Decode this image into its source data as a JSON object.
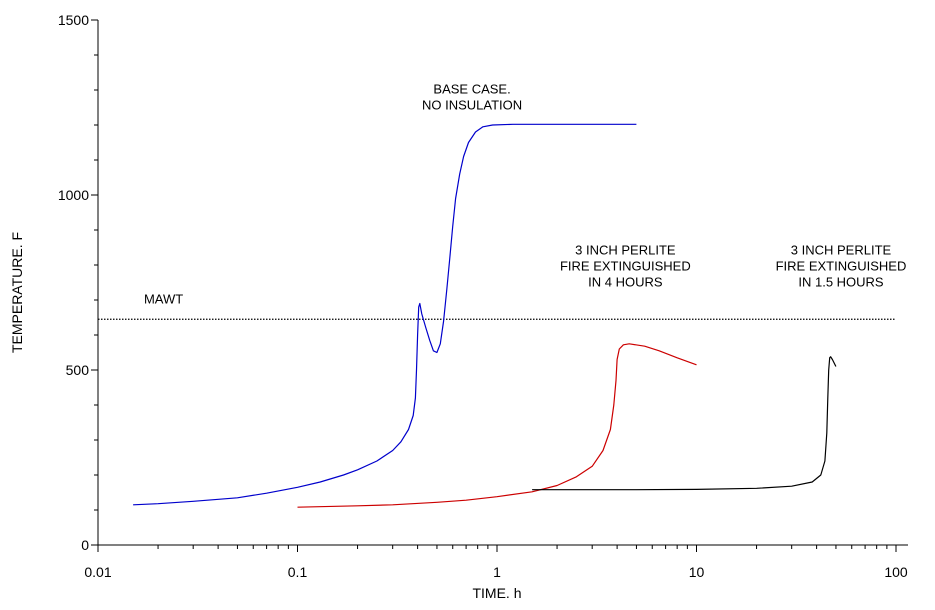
{
  "chart_data": {
    "type": "line",
    "title": "",
    "xlabel": "TIME. h",
    "ylabel": "TEMPERATURE. F",
    "x_scale": "log",
    "xlim": [
      0.01,
      100
    ],
    "ylim": [
      0,
      1500
    ],
    "x_ticks": [
      {
        "value": 0.01,
        "label": "0.01"
      },
      {
        "value": 0.1,
        "label": "0.1"
      },
      {
        "value": 1,
        "label": "1"
      },
      {
        "value": 10,
        "label": "10"
      },
      {
        "value": 100,
        "label": "100"
      }
    ],
    "y_ticks": [
      {
        "value": 0,
        "label": "0"
      },
      {
        "value": 500,
        "label": "500"
      },
      {
        "value": 1000,
        "label": "1000"
      },
      {
        "value": 1500,
        "label": "1500"
      }
    ],
    "grid": false,
    "legend": "none",
    "reference_lines": [
      {
        "label": "MAWT",
        "y": 645,
        "style": "dotted",
        "color": "#000000"
      }
    ],
    "series": [
      {
        "color": "#0000cc",
        "points": [
          [
            0.015,
            115
          ],
          [
            0.02,
            118
          ],
          [
            0.03,
            125
          ],
          [
            0.05,
            135
          ],
          [
            0.07,
            148
          ],
          [
            0.1,
            165
          ],
          [
            0.13,
            180
          ],
          [
            0.17,
            200
          ],
          [
            0.2,
            215
          ],
          [
            0.25,
            240
          ],
          [
            0.3,
            270
          ],
          [
            0.33,
            295
          ],
          [
            0.36,
            330
          ],
          [
            0.38,
            370
          ],
          [
            0.39,
            420
          ],
          [
            0.395,
            500
          ],
          [
            0.4,
            600
          ],
          [
            0.405,
            680
          ],
          [
            0.41,
            690
          ],
          [
            0.42,
            660
          ],
          [
            0.44,
            620
          ],
          [
            0.46,
            585
          ],
          [
            0.48,
            555
          ],
          [
            0.5,
            550
          ],
          [
            0.52,
            575
          ],
          [
            0.54,
            640
          ],
          [
            0.56,
            730
          ],
          [
            0.58,
            820
          ],
          [
            0.6,
            910
          ],
          [
            0.62,
            990
          ],
          [
            0.65,
            1060
          ],
          [
            0.68,
            1110
          ],
          [
            0.72,
            1150
          ],
          [
            0.78,
            1180
          ],
          [
            0.85,
            1195
          ],
          [
            0.95,
            1200
          ],
          [
            1.2,
            1202
          ],
          [
            2,
            1202
          ],
          [
            3,
            1202
          ],
          [
            5,
            1202
          ]
        ]
      },
      {
        "color": "#cc0000",
        "points": [
          [
            0.1,
            108
          ],
          [
            0.2,
            112
          ],
          [
            0.3,
            115
          ],
          [
            0.5,
            122
          ],
          [
            0.7,
            128
          ],
          [
            1.0,
            138
          ],
          [
            1.5,
            152
          ],
          [
            2,
            170
          ],
          [
            2.5,
            195
          ],
          [
            3,
            225
          ],
          [
            3.4,
            270
          ],
          [
            3.7,
            330
          ],
          [
            3.85,
            400
          ],
          [
            3.95,
            470
          ],
          [
            4.0,
            530
          ],
          [
            4.1,
            560
          ],
          [
            4.3,
            572
          ],
          [
            4.6,
            575
          ],
          [
            5.5,
            568
          ],
          [
            6.5,
            555
          ],
          [
            8,
            535
          ],
          [
            10,
            515
          ]
        ]
      },
      {
        "color": "#000000",
        "points": [
          [
            1.5,
            158
          ],
          [
            2,
            158
          ],
          [
            5,
            158
          ],
          [
            10,
            159
          ],
          [
            20,
            162
          ],
          [
            30,
            168
          ],
          [
            38,
            180
          ],
          [
            42,
            200
          ],
          [
            44,
            240
          ],
          [
            45,
            320
          ],
          [
            45.5,
            420
          ],
          [
            46,
            500
          ],
          [
            46.5,
            535
          ],
          [
            47,
            538
          ],
          [
            48,
            530
          ],
          [
            50,
            510
          ]
        ]
      }
    ],
    "annotations": [
      {
        "lines": [
          "BASE CASE.",
          "NO INSULATION"
        ],
        "x": 0.75,
        "y": 1290,
        "color": "#000000"
      },
      {
        "lines": [
          "3 INCH PERLITE",
          "FIRE EXTINGUISHED",
          "IN 4 HOURS"
        ],
        "x": 4.4,
        "y": 830,
        "color": "#000000"
      },
      {
        "lines": [
          "3 INCH PERLITE",
          "FIRE EXTINGUISHED",
          "IN 1.5 HOURS"
        ],
        "x": 53,
        "y": 830,
        "color": "#000000"
      },
      {
        "lines": [
          "MAWT"
        ],
        "x": 0.017,
        "y": 690,
        "color": "#000000"
      }
    ]
  }
}
